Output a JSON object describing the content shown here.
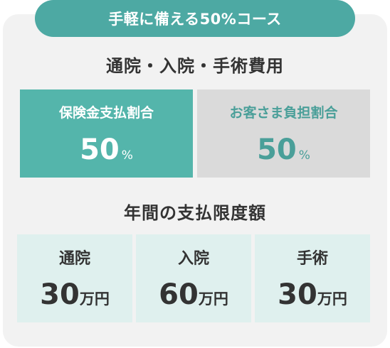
{
  "course_title": "手軽に備える50%コース",
  "medical_section": {
    "title": "通院・入院・手術費用",
    "insurer": {
      "label": "保険金支払割合",
      "value": "50",
      "unit": "%"
    },
    "self": {
      "label": "お客さま負担割合",
      "value": "50",
      "unit": "%"
    }
  },
  "limit_section": {
    "title": "年間の支払限度額",
    "items": [
      {
        "label": "通院",
        "value": "30",
        "unit": "万円"
      },
      {
        "label": "入院",
        "value": "60",
        "unit": "万円"
      },
      {
        "label": "手術",
        "value": "30",
        "unit": "万円"
      }
    ]
  },
  "colors": {
    "accent": "#4da9a3",
    "insurer_bg": "#54b5ab",
    "self_bg": "#dadada",
    "limit_bg": "#dff0ee",
    "card_bg": "#f2f2f2"
  }
}
